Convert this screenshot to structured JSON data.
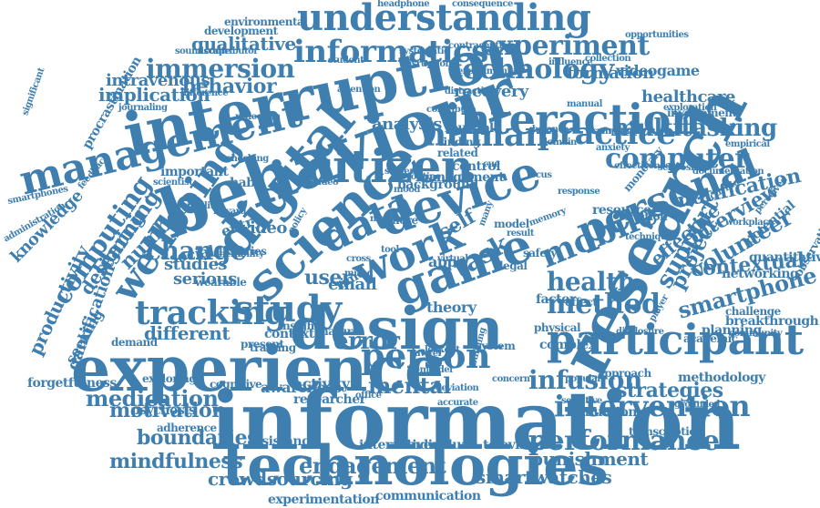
{
  "color": "#3f7fb0",
  "words": [
    "information",
    "behaviour",
    "research",
    "experience",
    "design",
    "interruption",
    "technologies",
    "digital",
    "game",
    "citizen",
    "science",
    "device",
    "work",
    "management",
    "data",
    "personal",
    "interaction",
    "participant",
    "understanding",
    "informatics",
    "experiment",
    "technology",
    "immersion",
    "study",
    "wellbeing",
    "human",
    "mobile",
    "person",
    "tracking",
    "intervention",
    "performance",
    "method",
    "computer",
    "practice",
    "multitasking",
    "change",
    "health",
    "task",
    "error",
    "engagement",
    "infusion",
    "strategies",
    "mental",
    "medication",
    "crowdsourcing",
    "smartwatches",
    "punishment",
    "support",
    "volunteer",
    "smartphone",
    "contextual",
    "interview",
    "project",
    "notification",
    "effective",
    "mindfulness",
    "boundaries",
    "motivation",
    "self",
    "behavior",
    "implication",
    "intravenous",
    "qualitative",
    "formation",
    "healthcare",
    "videogame",
    "recovery",
    "analysis",
    "user",
    "email",
    "time",
    "app",
    "computing",
    "learning",
    "number",
    "designing",
    "productivity",
    "knowledge",
    "gamification",
    "seeking",
    "video",
    "entry",
    "social",
    "serious",
    "studies",
    "different",
    "awareness",
    "activity",
    "researcher",
    "interactive",
    "individual",
    "television",
    "communication",
    "experimentation",
    "resistance",
    "psychosis",
    "adherence",
    "forgetfulness",
    "cognitive",
    "evaluation",
    "transcription",
    "approach",
    "methodology",
    "planning",
    "breakthrough",
    "networking",
    "quantitative",
    "observational",
    "potential",
    "resource",
    "involvement",
    "exploration",
    "opportunities",
    "environmental",
    "development",
    "systematic",
    "contributor",
    "soundscape",
    "journaling",
    "administration",
    "smartphones",
    "feedback",
    "reflection",
    "habit",
    "important",
    "scientist",
    "management",
    "control",
    "theory",
    "factor",
    "effect",
    "physical",
    "complex",
    "system",
    "multiple",
    "finding",
    "related",
    "routine",
    "mood",
    "screen",
    "nature",
    "insight",
    "context",
    "training",
    "demand",
    "exploring",
    "wearable",
    "libraries",
    "reward",
    "present",
    "checking",
    "video",
    "policy",
    "virtual",
    "legal",
    "safety",
    "friction",
    "activities",
    "documentation",
    "monetary",
    "player",
    "academic",
    "challenge",
    "disclosure",
    "reminder",
    "deviation",
    "accurate",
    "building",
    "lockout",
    "lawyer",
    "concern",
    "popular",
    "sensitive",
    "grounded",
    "significant",
    "procrastination",
    "difference",
    "distraction",
    "attention",
    "student",
    "disruption",
    "influence",
    "collection",
    "headphone",
    "consequence",
    "contraception",
    "experimental",
    "contribute",
    "balance",
    "domain",
    "symptom",
    "empirical",
    "effectiveness",
    "sclerosis",
    "perceived",
    "workplace",
    "community",
    "background",
    "more",
    "model",
    "media",
    "result",
    "cross",
    "mixed",
    "tool",
    "office",
    "cue",
    "focus",
    "many",
    "memory",
    "anxiety",
    "manual",
    "response",
    "technique",
    "sociability",
    "vulnerability"
  ]
}
